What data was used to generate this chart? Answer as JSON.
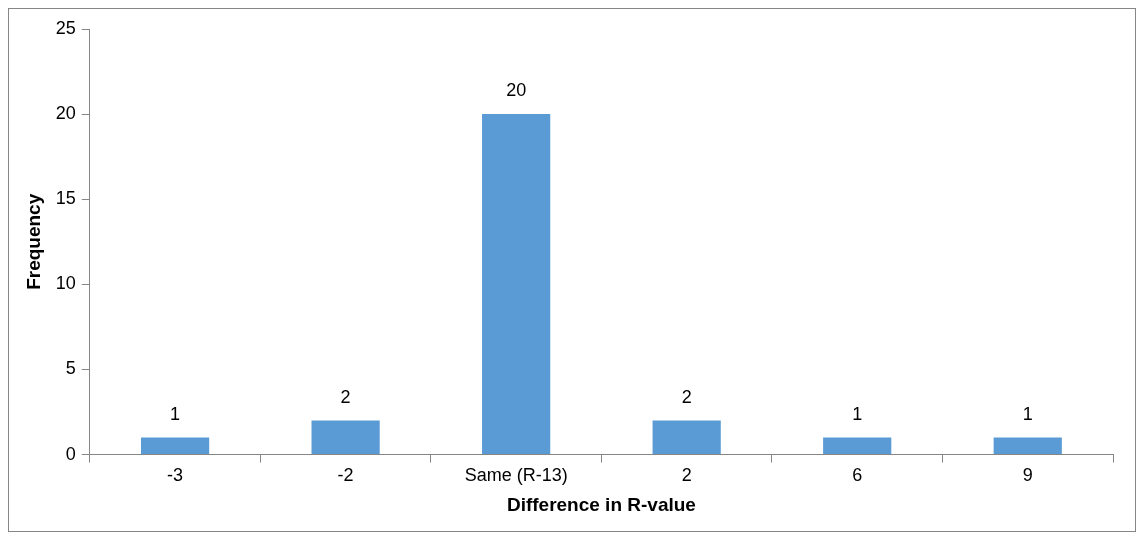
{
  "chart_data": {
    "type": "bar",
    "xlabel": "Difference in R-value",
    "ylabel": "Frequency",
    "categories": [
      "-3",
      "-2",
      "Same (R-13)",
      "2",
      "6",
      "9"
    ],
    "values": [
      1,
      2,
      20,
      2,
      1,
      1
    ],
    "color": "#5b9bd5",
    "ylim": [
      0,
      25
    ],
    "yticks": [
      0,
      5,
      10,
      15,
      20,
      25
    ],
    "grid": false,
    "legend": false,
    "data_labels": true
  }
}
